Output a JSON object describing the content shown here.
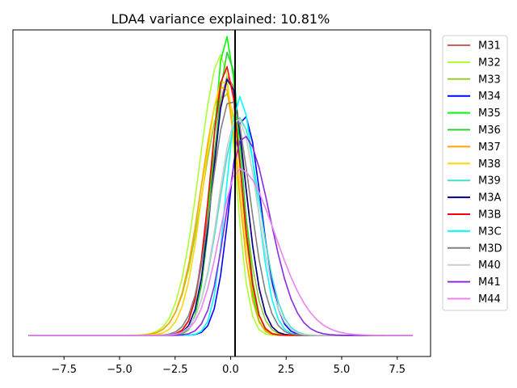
{
  "chart_data": {
    "type": "line",
    "title": "LDA4 variance explained: 10.81%",
    "xlabel": "",
    "ylabel": "",
    "xlim": [
      -9.8,
      9.0
    ],
    "ylim": [
      0,
      1.08
    ],
    "xticks": [
      -7.5,
      -5.0,
      -2.5,
      0.0,
      2.5,
      5.0,
      7.5
    ],
    "xtick_labels": [
      "−7.5",
      "−5.0",
      "−2.5",
      "0.0",
      "2.5",
      "5.0",
      "7.5"
    ],
    "yticks_visible": false,
    "vline_x": 0.2,
    "legend_position": "upper-right-outside",
    "series": [
      {
        "name": "M31",
        "color": "#cd5c5c",
        "peak_x": -0.1,
        "peak_y": 0.86,
        "sd_left": 0.75,
        "sd_right": 0.75
      },
      {
        "name": "M32",
        "color": "#adff2f",
        "peak_x": -0.4,
        "peak_y": 0.93,
        "sd_left": 1.0,
        "sd_right": 0.6
      },
      {
        "name": "M33",
        "color": "#9acd32",
        "peak_x": -0.2,
        "peak_y": 0.8,
        "sd_left": 1.05,
        "sd_right": 0.75
      },
      {
        "name": "M34",
        "color": "#0000ff",
        "peak_x": 0.6,
        "peak_y": 0.73,
        "sd_left": 0.65,
        "sd_right": 0.75
      },
      {
        "name": "M35",
        "color": "#00ff00",
        "peak_x": -0.2,
        "peak_y": 0.99,
        "sd_left": 0.6,
        "sd_right": 0.6
      },
      {
        "name": "M36",
        "color": "#32cd32",
        "peak_x": -0.1,
        "peak_y": 0.94,
        "sd_left": 0.65,
        "sd_right": 0.6
      },
      {
        "name": "M37",
        "color": "#ffa500",
        "peak_x": -0.3,
        "peak_y": 0.83,
        "sd_left": 1.0,
        "sd_right": 0.65
      },
      {
        "name": "M38",
        "color": "#ffd700",
        "peak_x": -0.3,
        "peak_y": 0.85,
        "sd_left": 0.9,
        "sd_right": 0.7
      },
      {
        "name": "M39",
        "color": "#40e0d0",
        "peak_x": 0.4,
        "peak_y": 0.72,
        "sd_left": 0.9,
        "sd_right": 0.9
      },
      {
        "name": "M3A",
        "color": "#00008b",
        "peak_x": -0.1,
        "peak_y": 0.85,
        "sd_left": 0.7,
        "sd_right": 0.75
      },
      {
        "name": "M3B",
        "color": "#ff0000",
        "peak_x": -0.2,
        "peak_y": 0.89,
        "sd_left": 0.7,
        "sd_right": 0.65
      },
      {
        "name": "M3C",
        "color": "#00ffff",
        "peak_x": 0.4,
        "peak_y": 0.79,
        "sd_left": 0.6,
        "sd_right": 0.75
      },
      {
        "name": "M3D",
        "color": "#808080",
        "peak_x": 0.0,
        "peak_y": 0.78,
        "sd_left": 0.85,
        "sd_right": 0.85
      },
      {
        "name": "M40",
        "color": "#cccccc",
        "peak_x": 0.3,
        "peak_y": 0.72,
        "sd_left": 0.85,
        "sd_right": 0.9
      },
      {
        "name": "M41",
        "color": "#8a2be2",
        "peak_x": 0.6,
        "peak_y": 0.66,
        "sd_left": 0.8,
        "sd_right": 1.15
      },
      {
        "name": "M44",
        "color": "#ee82ee",
        "peak_x": 0.4,
        "peak_y": 0.55,
        "sd_left": 0.9,
        "sd_right": 1.6
      }
    ]
  }
}
